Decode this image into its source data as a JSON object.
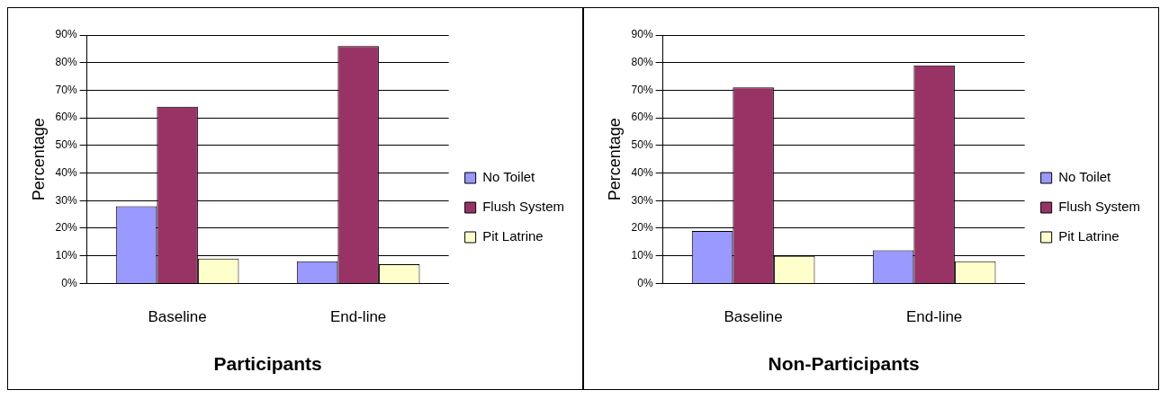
{
  "chart_data": [
    {
      "type": "bar",
      "xlabel": "Participants",
      "ylabel": "Percentage",
      "categories": [
        "Baseline",
        "End-line"
      ],
      "series": [
        {
          "name": "No Toilet",
          "color": "#9999ff",
          "values": [
            28,
            8
          ]
        },
        {
          "name": "Flush System",
          "color": "#993366",
          "values": [
            64,
            86
          ]
        },
        {
          "name": "Pit Latrine",
          "color": "#ffffcc",
          "values": [
            9,
            7
          ]
        }
      ],
      "ylim": [
        0,
        90
      ],
      "yticks": [
        {
          "value": 0,
          "label": "0%"
        },
        {
          "value": 10,
          "label": "10%"
        },
        {
          "value": 20,
          "label": "20%"
        },
        {
          "value": 30,
          "label": "30%"
        },
        {
          "value": 40,
          "label": "40%"
        },
        {
          "value": 50,
          "label": "50%"
        },
        {
          "value": 60,
          "label": "60%"
        },
        {
          "value": 70,
          "label": "70%"
        },
        {
          "value": 80,
          "label": "80%"
        },
        {
          "value": 90,
          "label": "90%"
        }
      ],
      "grid": "y",
      "legend": "right"
    },
    {
      "type": "bar",
      "xlabel": "Non-Participants",
      "ylabel": "Percentage",
      "categories": [
        "Baseline",
        "End-line"
      ],
      "series": [
        {
          "name": "No Toilet",
          "color": "#9999ff",
          "values": [
            19,
            12
          ]
        },
        {
          "name": "Flush System",
          "color": "#993366",
          "values": [
            71,
            79
          ]
        },
        {
          "name": "Pit Latrine",
          "color": "#ffffcc",
          "values": [
            10,
            8
          ]
        }
      ],
      "ylim": [
        0,
        90
      ],
      "yticks": [
        {
          "value": 0,
          "label": "0%"
        },
        {
          "value": 10,
          "label": "10%"
        },
        {
          "value": 20,
          "label": "20%"
        },
        {
          "value": 30,
          "label": "30%"
        },
        {
          "value": 40,
          "label": "40%"
        },
        {
          "value": 50,
          "label": "50%"
        },
        {
          "value": 60,
          "label": "60%"
        },
        {
          "value": 70,
          "label": "70%"
        },
        {
          "value": 80,
          "label": "80%"
        },
        {
          "value": 90,
          "label": "90%"
        }
      ],
      "grid": "y",
      "legend": "right"
    }
  ]
}
